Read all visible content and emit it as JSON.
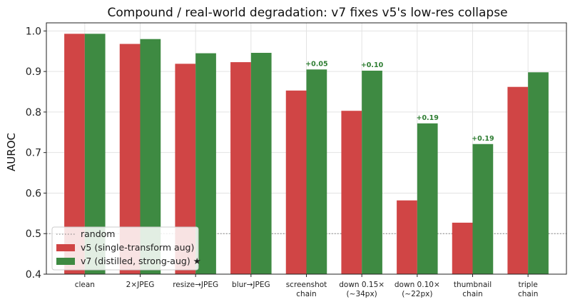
{
  "chart_data": {
    "type": "bar",
    "title": "Compound / real-world degradation: v7 fixes v5's low-res collapse",
    "xlabel": "",
    "ylabel": "AUROC",
    "ylim": [
      0.4,
      1.02
    ],
    "yticks": [
      "0.4",
      "0.5",
      "0.6",
      "0.7",
      "0.8",
      "0.9",
      "1.0"
    ],
    "grid": true,
    "legend_position": "lower-left",
    "categories": [
      [
        "clean"
      ],
      [
        "2×JPEG"
      ],
      [
        "resize→JPEG"
      ],
      [
        "blur→JPEG"
      ],
      [
        "screenshot",
        "chain"
      ],
      [
        "down 0.15×",
        "(~34px)"
      ],
      [
        "down 0.10×",
        "(~22px)"
      ],
      [
        "thumbnail",
        "chain"
      ],
      [
        "triple",
        "chain"
      ]
    ],
    "series": [
      {
        "name": "v5 (single-transform aug)",
        "color": "#d04545",
        "values": [
          0.993,
          0.968,
          0.919,
          0.923,
          0.853,
          0.803,
          0.582,
          0.527,
          0.862
        ]
      },
      {
        "name": "v7 (distilled, strong-aug) ★",
        "color": "#3e8a42",
        "values": [
          0.993,
          0.98,
          0.945,
          0.946,
          0.905,
          0.902,
          0.772,
          0.721,
          0.898
        ]
      }
    ],
    "reference_line": {
      "name": "random",
      "value": 0.5
    },
    "annotations": [
      {
        "category_index": 4,
        "text": "+0.05"
      },
      {
        "category_index": 5,
        "text": "+0.10"
      },
      {
        "category_index": 6,
        "text": "+0.19"
      },
      {
        "category_index": 7,
        "text": "+0.19"
      }
    ]
  }
}
